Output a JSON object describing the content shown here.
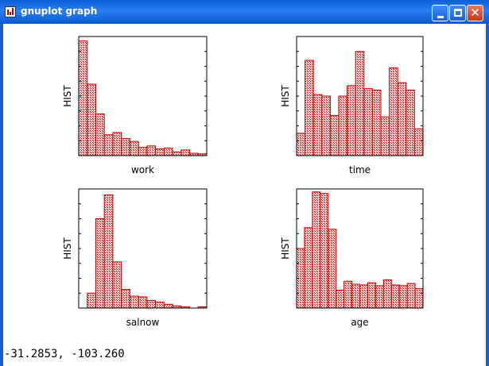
{
  "window": {
    "title": "gnuplot graph",
    "buttons": {
      "minimize": "minimize",
      "maximize": "maximize",
      "close": "close"
    }
  },
  "colors": {
    "bar_stroke": "#cc0000",
    "bar_fill_pattern": "#e08080",
    "titlebar": "#0a5fd8"
  },
  "status": {
    "coords": "-31.2853, -103.260"
  },
  "chart_data": [
    {
      "type": "bar",
      "xlabel": "work",
      "ylabel": "HIST",
      "ylim": [
        0,
        8
      ],
      "values": [
        7.7,
        4.8,
        2.8,
        1.4,
        1.55,
        1.15,
        0.95,
        0.55,
        0.65,
        0.45,
        0.5,
        0.25,
        0.38,
        0.16,
        0.12
      ]
    },
    {
      "type": "bar",
      "xlabel": "time",
      "ylabel": "HIST",
      "ylim": [
        0,
        8
      ],
      "values": [
        1.5,
        6.4,
        4.1,
        4.0,
        2.7,
        4.0,
        4.7,
        7.0,
        4.5,
        4.4,
        2.6,
        5.9,
        4.9,
        4.4,
        1.8
      ]
    },
    {
      "type": "bar",
      "xlabel": "salnow",
      "ylabel": "HIST",
      "ylim": [
        0,
        8
      ],
      "values": [
        0,
        1.0,
        6.0,
        7.6,
        3.1,
        1.25,
        0.8,
        0.75,
        0.5,
        0.4,
        0.25,
        0.15,
        0.08,
        0,
        0.08
      ]
    },
    {
      "type": "bar",
      "xlabel": "age",
      "ylabel": "HIST",
      "ylim": [
        0,
        8
      ],
      "values": [
        4.0,
        5.4,
        7.8,
        7.7,
        5.3,
        1.2,
        1.8,
        1.6,
        1.55,
        1.7,
        1.5,
        1.9,
        1.55,
        1.5,
        1.65,
        1.3
      ]
    }
  ]
}
